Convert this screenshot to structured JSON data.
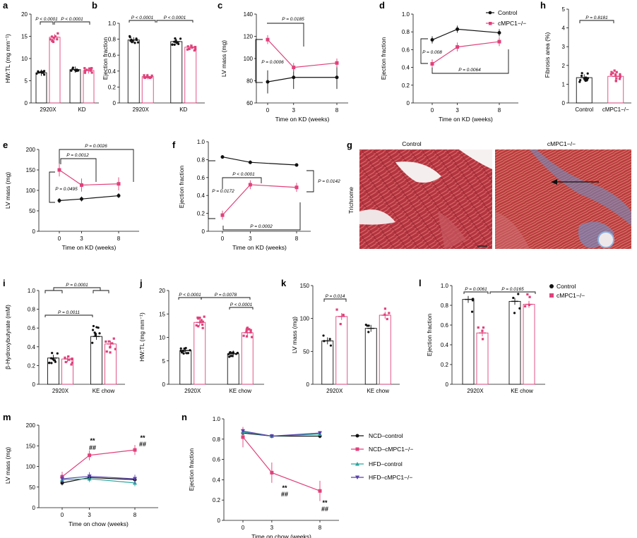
{
  "colors": {
    "control": "#111111",
    "ko": "#e0417a",
    "hfd_control": "#2aa6a0",
    "hfd_ko": "#5a3fa8",
    "trichrome_muscle": "#b3343f",
    "trichrome_fibrosis": "#5a8ac4"
  },
  "chart_data": [
    {
      "id": "a",
      "label": "a",
      "type": "bar",
      "categories": [
        "2920X",
        "KD"
      ],
      "series": [
        {
          "name": "Control",
          "values": [
            6.8,
            7.5
          ]
        },
        {
          "name": "cMPC1−/−",
          "values": [
            14.8,
            7.3
          ]
        }
      ],
      "ylabel": "HW:TL (mg mm⁻¹)",
      "ylim": [
        0,
        20
      ],
      "yticks": [
        "0",
        "5",
        "10",
        "15",
        "20"
      ],
      "annotations": [
        "P < 0.0001",
        "P < 0.0001"
      ]
    },
    {
      "id": "b",
      "label": "b",
      "type": "bar",
      "categories": [
        "2920X",
        "KD"
      ],
      "series": [
        {
          "name": "Control",
          "values": [
            0.79,
            0.77
          ]
        },
        {
          "name": "cMPC1−/−",
          "values": [
            0.33,
            0.7
          ]
        }
      ],
      "ylabel": "Ejection fraction",
      "ylim": [
        0,
        1
      ],
      "yticks": [
        "0",
        "0.2",
        "0.4",
        "0.6",
        "0.8",
        "1.0"
      ],
      "annotations": [
        "P < 0.0001",
        "P < 0.0001"
      ]
    },
    {
      "id": "c",
      "label": "c",
      "type": "line",
      "x": [
        0,
        3,
        8
      ],
      "series": [
        {
          "name": "Control",
          "values": [
            79,
            83,
            83
          ]
        },
        {
          "name": "cMPC1−/−",
          "values": [
            117,
            92,
            96
          ]
        }
      ],
      "xlabel": "Time on KD (weeks)",
      "ylabel": "LV mass (mg)",
      "ylim": [
        60,
        140
      ],
      "yticks": [
        "60",
        "80",
        "100",
        "120",
        "140"
      ],
      "xticks": [
        "0",
        "3",
        "8"
      ],
      "annotations": [
        "P = 0.0185",
        "P = 0.0006"
      ]
    },
    {
      "id": "d",
      "label": "d",
      "type": "line",
      "x": [
        0,
        3,
        8
      ],
      "series": [
        {
          "name": "Control",
          "values": [
            0.71,
            0.83,
            0.79
          ]
        },
        {
          "name": "cMPC1−/−",
          "values": [
            0.44,
            0.63,
            0.69
          ]
        }
      ],
      "xlabel": "Time on KD (weeks)",
      "ylabel": "Ejection fraction",
      "ylim": [
        0,
        1
      ],
      "yticks": [
        "0",
        "0.2",
        "0.4",
        "0.6",
        "0.8",
        "1.0"
      ],
      "xticks": [
        "0",
        "3",
        "8"
      ],
      "annotations": [
        "P = 0.008",
        "P = 0.0064"
      ],
      "legend": [
        "Control",
        "cMPC1−/−"
      ]
    },
    {
      "id": "h",
      "label": "h",
      "type": "bar",
      "categories": [
        "Control",
        "cMPC1−/−"
      ],
      "values": [
        1.35,
        1.42
      ],
      "ylabel": "Fibrosis area (%)",
      "ylim": [
        0,
        5
      ],
      "yticks": [
        "0",
        "1",
        "2",
        "3",
        "4",
        "5"
      ],
      "annotations": [
        "P = 0.8181"
      ]
    },
    {
      "id": "e",
      "label": "e",
      "type": "line",
      "x": [
        0,
        3,
        8
      ],
      "series": [
        {
          "name": "Control",
          "values": [
            75,
            79,
            87
          ]
        },
        {
          "name": "cMPC1−/−",
          "values": [
            150,
            113,
            116
          ]
        }
      ],
      "xlabel": "Time on KD (weeks)",
      "ylabel": "LV mass (mg)",
      "ylim": [
        0,
        200
      ],
      "yticks": [
        "0",
        "50",
        "100",
        "150",
        "200"
      ],
      "xticks": [
        "0",
        "3",
        "8"
      ],
      "annotations": [
        "P = 0.0026",
        "P = 0.0012",
        "P = 0.0495"
      ]
    },
    {
      "id": "f",
      "label": "f",
      "type": "line",
      "x": [
        0,
        3,
        8
      ],
      "series": [
        {
          "name": "Control",
          "values": [
            0.83,
            0.77,
            0.74
          ]
        },
        {
          "name": "cMPC1−/−",
          "values": [
            0.18,
            0.52,
            0.49
          ]
        }
      ],
      "xlabel": "Time on KD (weeks)",
      "ylabel": "Ejection fraction",
      "ylim": [
        0,
        1
      ],
      "yticks": [
        "0",
        "0.2",
        "0.4",
        "0.6",
        "0.8",
        "1.0"
      ],
      "xticks": [
        "0",
        "3",
        "8"
      ],
      "annotations": [
        "P < 0.0001",
        "P = 0.0172",
        "P = 0.0142",
        "P = 0.0002"
      ]
    },
    {
      "id": "i",
      "label": "i",
      "type": "bar",
      "categories": [
        "2920X",
        "KE chow"
      ],
      "series": [
        {
          "name": "Control",
          "values": [
            0.28,
            0.51
          ]
        },
        {
          "name": "cMPC1−/−",
          "values": [
            0.27,
            0.43
          ]
        }
      ],
      "ylabel": "β-Hydroxybutyrate (mM)",
      "ylim": [
        0,
        1
      ],
      "yticks": [
        "0",
        "0.2",
        "0.4",
        "0.6",
        "0.8",
        "1.0"
      ],
      "annotations": [
        "P = 0.0001",
        "P = 0.0011"
      ]
    },
    {
      "id": "j",
      "label": "j",
      "type": "bar",
      "categories": [
        "2920X",
        "KE chow"
      ],
      "series": [
        {
          "name": "Control",
          "values": [
            7.2,
            6.5
          ]
        },
        {
          "name": "cMPC1−/−",
          "values": [
            13.2,
            11
          ]
        }
      ],
      "ylabel": "HW:TL (mg mm⁻¹)",
      "ylim": [
        0,
        20
      ],
      "yticks": [
        "0",
        "5",
        "10",
        "15",
        "20"
      ],
      "annotations": [
        "P < 0.0001",
        "P = 0.0078",
        "P < 0.0001"
      ]
    },
    {
      "id": "k",
      "label": "k",
      "type": "bar",
      "categories": [
        "2920X",
        "KE chow"
      ],
      "series": [
        {
          "name": "Control",
          "values": [
            66,
            85
          ]
        },
        {
          "name": "cMPC1−/−",
          "values": [
            103,
            105
          ]
        }
      ],
      "ylabel": "LV mass (mg)",
      "ylim": [
        0,
        150
      ],
      "yticks": [
        "0",
        "50",
        "100",
        "150"
      ],
      "annotations": [
        "P = 0.014"
      ]
    },
    {
      "id": "l",
      "label": "l",
      "type": "bar",
      "categories": [
        "2920X",
        "KE chow"
      ],
      "series": [
        {
          "name": "Control",
          "values": [
            0.86,
            0.84
          ]
        },
        {
          "name": "cMPC1−/−",
          "values": [
            0.52,
            0.81
          ]
        }
      ],
      "ylabel": "Ejection fraction",
      "ylim": [
        0,
        1
      ],
      "yticks": [
        "0",
        "0.2",
        "0.4",
        "0.6",
        "0.8",
        "1.0"
      ],
      "annotations": [
        "P = 0.0061",
        "P = 0.0165"
      ],
      "legend": [
        "Control",
        "cMPC1−/−"
      ]
    },
    {
      "id": "m",
      "label": "m",
      "type": "line",
      "x": [
        0,
        3,
        8
      ],
      "series": [
        {
          "name": "NCD–control",
          "values": [
            60,
            73,
            68
          ]
        },
        {
          "name": "NCD–cMPC1−/−",
          "values": [
            75,
            127,
            140
          ]
        },
        {
          "name": "HFD–control",
          "values": [
            68,
            70,
            60
          ]
        },
        {
          "name": "HFD–cMPC1−/−",
          "values": [
            70,
            76,
            70
          ]
        }
      ],
      "xlabel": "Time on chow (weeks)",
      "ylabel": "LV mass (mg)",
      "ylim": [
        0,
        200
      ],
      "yticks": [
        "0",
        "50",
        "100",
        "150",
        "200"
      ],
      "xticks": [
        "0",
        "3",
        "8"
      ],
      "annotations": [
        "**",
        "##",
        "**",
        "##"
      ]
    },
    {
      "id": "n",
      "label": "n",
      "type": "line",
      "x": [
        0,
        3,
        8
      ],
      "series": [
        {
          "name": "NCD–control",
          "values": [
            0.86,
            0.83,
            0.83
          ]
        },
        {
          "name": "NCD–cMPC1−/−",
          "values": [
            0.82,
            0.47,
            0.29
          ]
        },
        {
          "name": "HFD–control",
          "values": [
            0.87,
            0.83,
            0.85
          ]
        },
        {
          "name": "HFD–cMPC1−/−",
          "values": [
            0.88,
            0.83,
            0.86
          ]
        }
      ],
      "xlabel": "Time on chow (weeks)",
      "ylabel": "Ejection fraction",
      "ylim": [
        0,
        1
      ],
      "yticks": [
        "0",
        "0.2",
        "0.4",
        "0.6",
        "0.8",
        "1.0"
      ],
      "xticks": [
        "0",
        "3",
        "8"
      ],
      "annotations": [
        "**",
        "##",
        "**",
        "##"
      ],
      "legend": [
        "NCD–control",
        "NCD–cMPC1−/−",
        "HFD–control",
        "HFD–cMPC1−/−"
      ]
    }
  ],
  "panel_g": {
    "label": "g",
    "titles": [
      "Control",
      "cMPC1−/−"
    ],
    "ylabel": "Trichrome"
  }
}
